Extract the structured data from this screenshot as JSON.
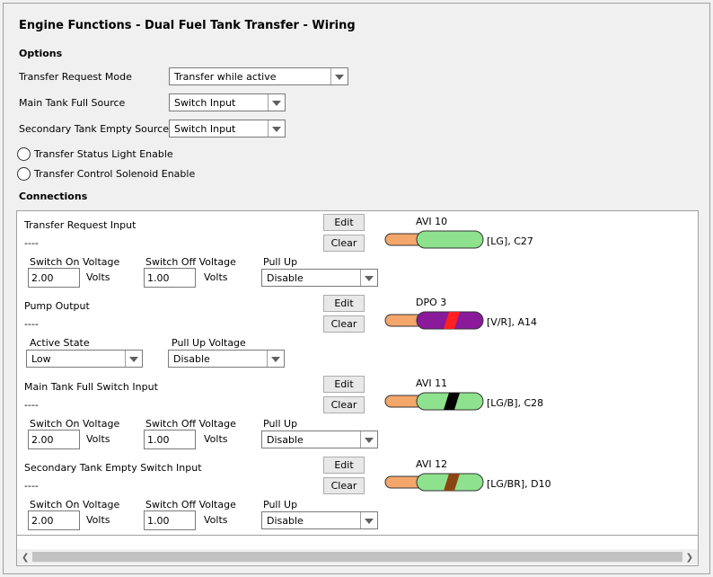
{
  "title": "Engine Functions - Dual Fuel Tank Transfer - Wiring",
  "options": {
    "heading": "Options",
    "transfer_request_mode": {
      "label": "Transfer Request Mode",
      "value": "Transfer while active"
    },
    "main_tank_full_source": {
      "label": "Main Tank Full Source",
      "value": "Switch Input"
    },
    "secondary_tank_empty_source": {
      "label": "Secondary Tank Empty Source",
      "value": "Switch Input"
    },
    "status_light": {
      "label": "Transfer Status Light Enable",
      "checked": false
    },
    "control_solenoid": {
      "label": "Transfer Control Solenoid Enable",
      "checked": false
    }
  },
  "connections": {
    "heading": "Connections",
    "items": [
      {
        "name": "Transfer Request Input",
        "value": "----",
        "edit": "Edit",
        "clear": "Clear",
        "channel": "AVI 10",
        "pin": "[LG], C27",
        "wire_colors": {
          "tip": "#f4a66b",
          "body": "#8ee28e",
          "stripe": null
        },
        "fields": {
          "on_label": "Switch On Voltage",
          "on_value": "2.00",
          "on_unit": "Volts",
          "off_label": "Switch Off Voltage",
          "off_value": "1.00",
          "off_unit": "Volts",
          "pull_label": "Pull Up",
          "pull_value": "Disable"
        }
      },
      {
        "name": "Pump Output",
        "value": "----",
        "edit": "Edit",
        "clear": "Clear",
        "channel": "DPO 3",
        "pin": "[V/R], A14",
        "wire_colors": {
          "tip": "#f4a66b",
          "body": "#8b1a9b",
          "stripe": "#ff2020"
        },
        "fields": {
          "active_label": "Active State",
          "active_value": "Low",
          "pullv_label": "Pull Up Voltage",
          "pullv_value": "Disable"
        }
      },
      {
        "name": "Main Tank Full Switch Input",
        "value": "----",
        "edit": "Edit",
        "clear": "Clear",
        "channel": "AVI 11",
        "pin": "[LG/B], C28",
        "wire_colors": {
          "tip": "#f4a66b",
          "body": "#8ee28e",
          "stripe": "#000000"
        },
        "fields": {
          "on_label": "Switch On Voltage",
          "on_value": "2.00",
          "on_unit": "Volts",
          "off_label": "Switch Off Voltage",
          "off_value": "1.00",
          "off_unit": "Volts",
          "pull_label": "Pull Up",
          "pull_value": "Disable"
        }
      },
      {
        "name": "Secondary Tank Empty Switch Input",
        "value": "----",
        "edit": "Edit",
        "clear": "Clear",
        "channel": "AVI 12",
        "pin": "[LG/BR], D10",
        "wire_colors": {
          "tip": "#f4a66b",
          "body": "#8ee28e",
          "stripe": "#8b4513"
        },
        "fields": {
          "on_label": "Switch On Voltage",
          "on_value": "2.00",
          "on_unit": "Volts",
          "off_label": "Switch Off Voltage",
          "off_value": "1.00",
          "off_unit": "Volts",
          "pull_label": "Pull Up",
          "pull_value": "Disable"
        }
      }
    ]
  }
}
